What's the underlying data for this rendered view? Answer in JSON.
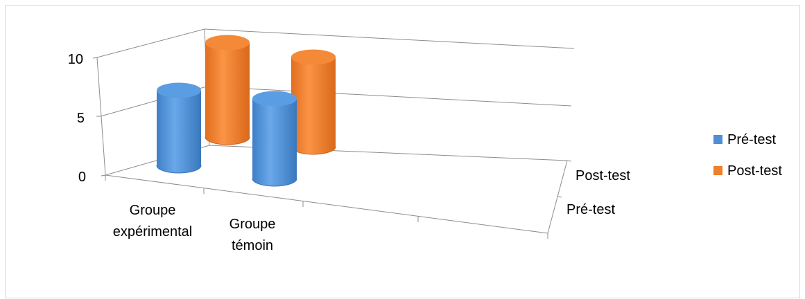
{
  "chart_data": {
    "type": "bar",
    "style": "3d-cylinder",
    "categories": [
      "Groupe expérimental",
      "Groupe témoin"
    ],
    "category_lines": [
      [
        "Groupe",
        "expérimental"
      ],
      [
        "Groupe",
        "témoin"
      ]
    ],
    "depth_labels": [
      "Post-test",
      "Pré-test"
    ],
    "series": [
      {
        "name": "Pré-test",
        "color": "#4f8fd3",
        "values": [
          6.2,
          6.6
        ]
      },
      {
        "name": "Post-test",
        "color": "#f07e2a",
        "values": [
          7.8,
          7.4
        ]
      }
    ],
    "yticks": [
      "0",
      "5",
      "10"
    ],
    "ylim": [
      0,
      10
    ],
    "legend": [
      "Pré-test",
      "Post-test"
    ],
    "legend_position": "right",
    "grid": true,
    "colors": {
      "pre": "#4f8fd3",
      "post": "#f07e2a"
    }
  }
}
